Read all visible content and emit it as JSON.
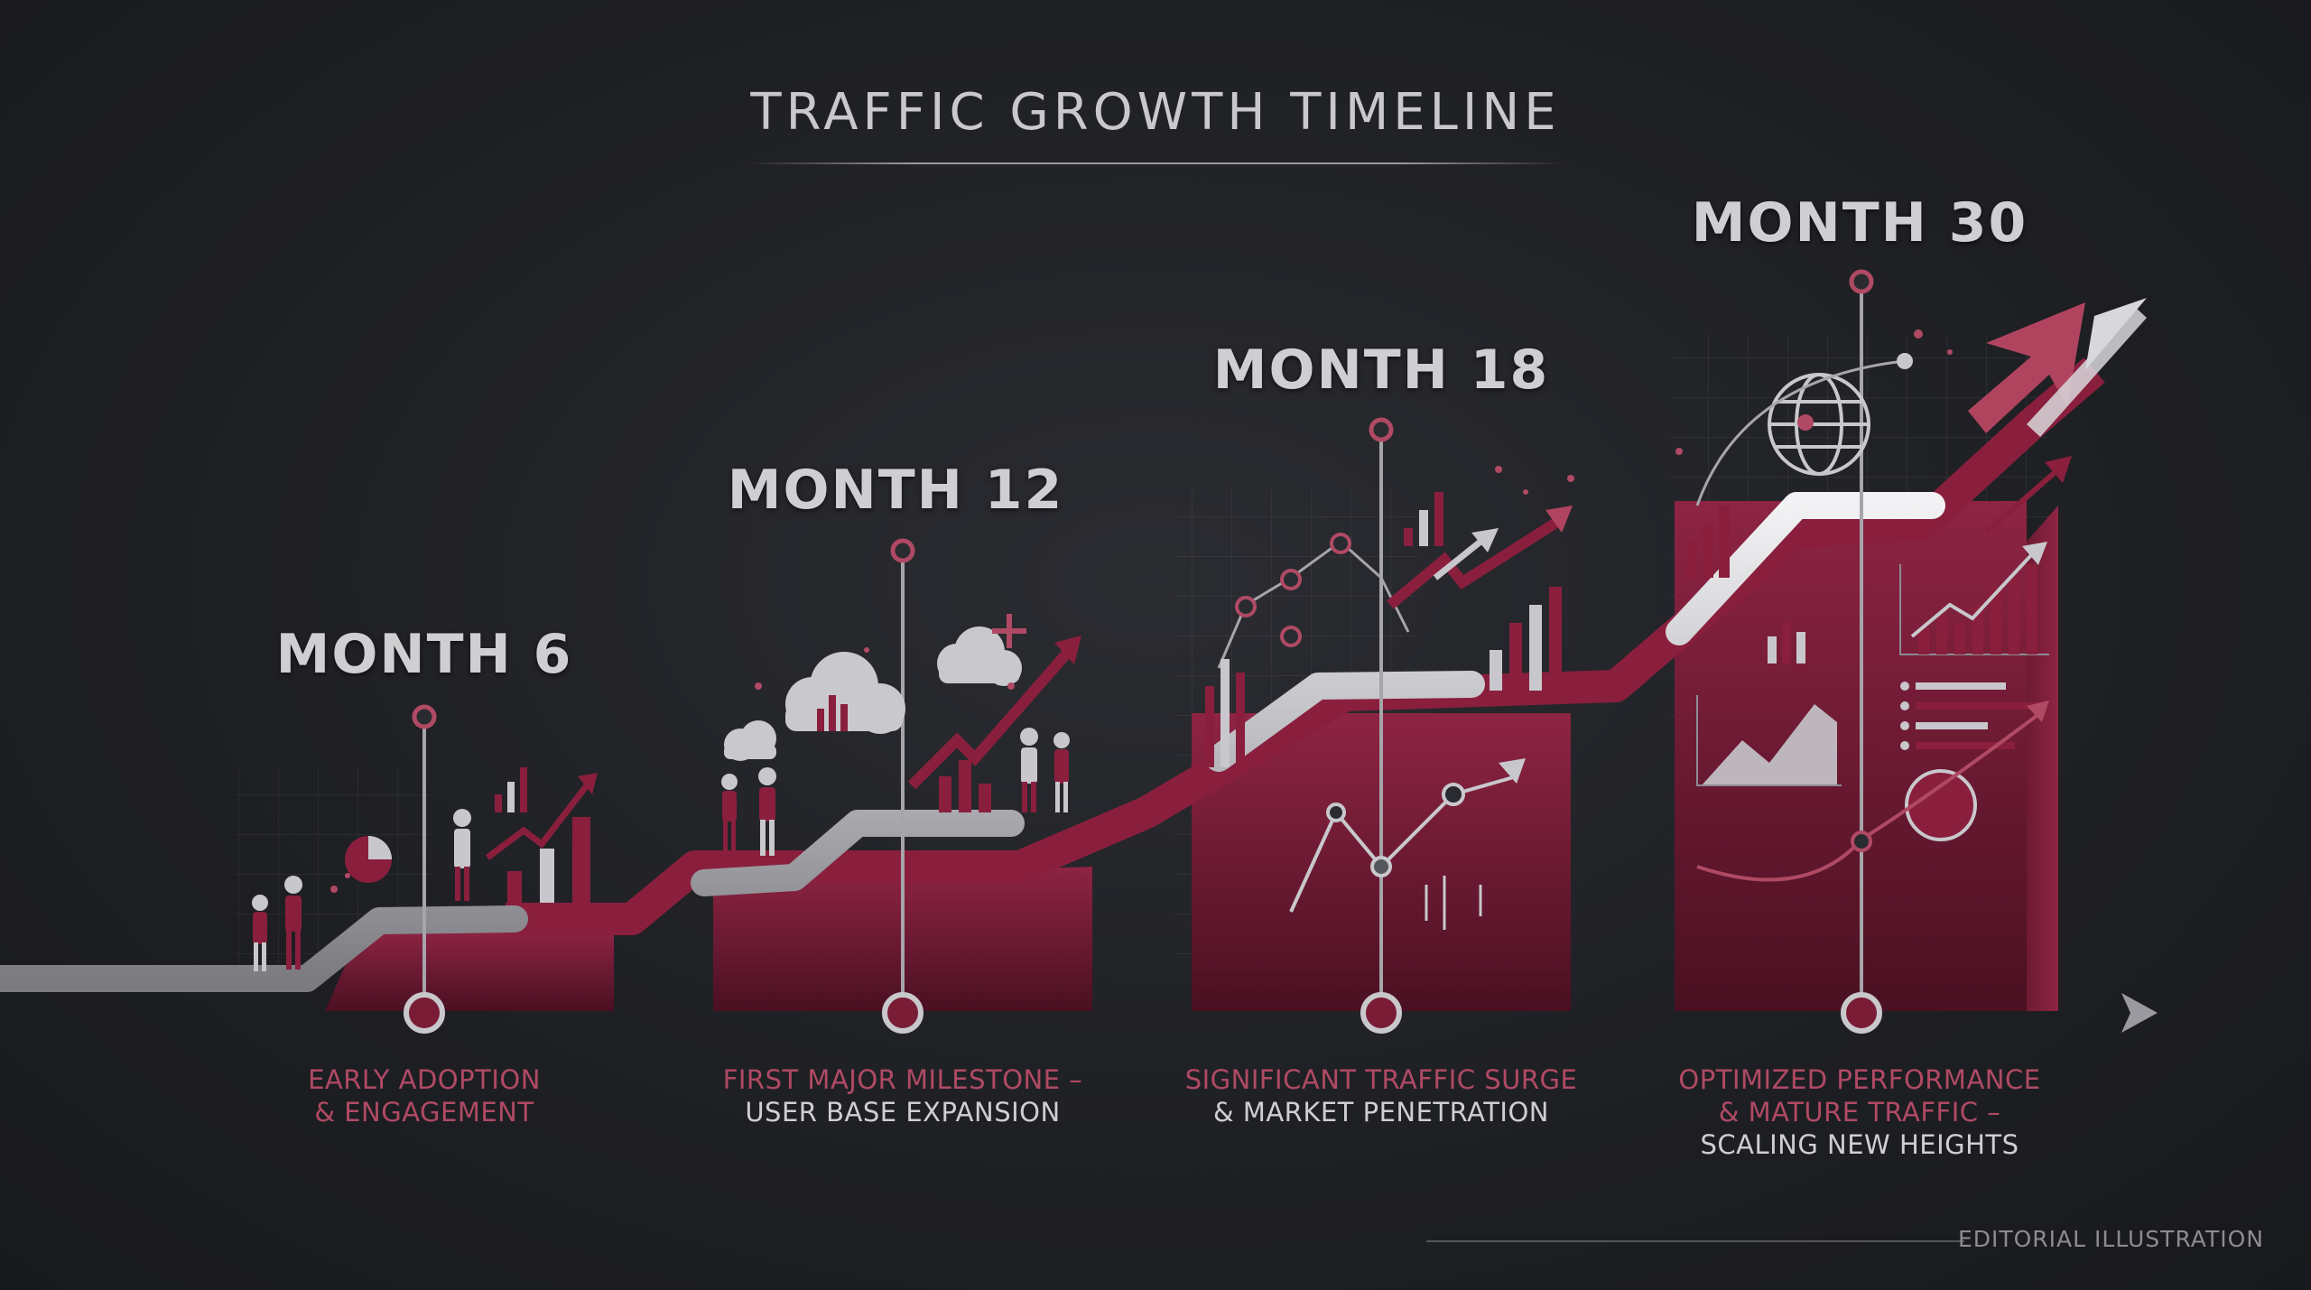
{
  "title": "TRAFFIC GROWTH TIMELINE",
  "milestones": [
    {
      "label": "MONTH 6",
      "caption_accent": [
        "EARLY ADOPTION",
        "& ENGAGEMENT"
      ],
      "caption_muted": []
    },
    {
      "label": "MONTH 12",
      "caption_accent": [
        "FIRST MAJOR MILESTONE –"
      ],
      "caption_muted": [
        "USER BASE EXPANSION"
      ]
    },
    {
      "label": "MONTH 18",
      "caption_accent": [
        "SIGNIFICANT TRAFFIC SURGE"
      ],
      "caption_muted": [
        "& MARKET PENETRATION"
      ]
    },
    {
      "label": "MONTH 30",
      "caption_accent": [
        "OPTIMIZED PERFORMANCE",
        "& MATURE TRAFFIC –"
      ],
      "caption_muted": [
        "SCALING NEW HEIGHTS"
      ]
    }
  ],
  "footer": "EDITORIAL ILLUSTRATION",
  "colors": {
    "background": "#1f2024",
    "accent": "#8a1f3d",
    "accent_text": "#b04a64",
    "silver": "#d8d8dc",
    "text": "#cfcfd2"
  },
  "icons": [
    "people-icon",
    "pie-chart-icon",
    "bar-chart-icon",
    "cloud-icon",
    "plus-icon",
    "globe-icon",
    "trend-arrow-icon"
  ]
}
